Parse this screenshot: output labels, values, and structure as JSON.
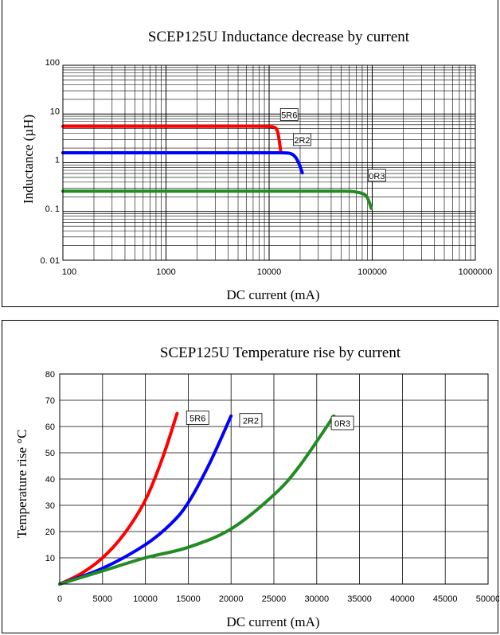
{
  "chart_data": [
    {
      "type": "line",
      "title": "SCEP125U Inductance decrease by current",
      "xlabel": "DC current (mA)",
      "ylabel": "Inductance (µH)",
      "xscale": "log",
      "yscale": "log",
      "xlim": [
        100,
        1000000
      ],
      "ylim": [
        0.01,
        100
      ],
      "x_tick_labels": [
        "100",
        "1000",
        "10000",
        "100000",
        "1000000"
      ],
      "y_tick_labels": [
        "0. 01",
        "0. 1",
        "1",
        "10",
        "100"
      ],
      "grid": true,
      "series": [
        {
          "name": "5R6",
          "color": "#ff0000",
          "x": [
            100,
            3000,
            8000,
            11000,
            12000,
            12500,
            13000
          ],
          "y": [
            5.6,
            5.6,
            5.6,
            5.4,
            4.5,
            3.0,
            1.6
          ]
        },
        {
          "name": "2R2",
          "color": "#0000ff",
          "x": [
            100,
            5000,
            12000,
            16000,
            18000,
            19500,
            21000
          ],
          "y": [
            1.6,
            1.6,
            1.6,
            1.55,
            1.3,
            0.95,
            0.62
          ]
        },
        {
          "name": "0R3",
          "color": "#228b22",
          "x": [
            100,
            10000,
            50000,
            70000,
            85000,
            92000,
            98000
          ],
          "y": [
            0.26,
            0.26,
            0.26,
            0.25,
            0.22,
            0.17,
            0.115
          ]
        }
      ]
    },
    {
      "type": "line",
      "title": "SCEP125U Temperature rise by current",
      "xlabel": "DC current (mA)",
      "ylabel": "Temperature rise °C",
      "xlim": [
        0,
        50000
      ],
      "ylim": [
        0,
        80
      ],
      "x_tick_labels": [
        "0",
        "5000",
        "10000",
        "15000",
        "20000",
        "25000",
        "30000",
        "35000",
        "40000",
        "45000",
        "50000"
      ],
      "y_tick_labels": [
        "10",
        "20",
        "30",
        "40",
        "50",
        "60",
        "70",
        "80"
      ],
      "grid": true,
      "series": [
        {
          "name": "5R6",
          "color": "#ff0000",
          "x": [
            0,
            2500,
            5000,
            7500,
            10000,
            12000,
            13700
          ],
          "y": [
            0,
            4,
            10,
            19,
            32,
            48,
            65
          ]
        },
        {
          "name": "2R2",
          "color": "#0000ff",
          "x": [
            0,
            5000,
            10000,
            13000,
            15000,
            17500,
            20000
          ],
          "y": [
            0,
            6,
            15,
            23,
            31,
            46,
            64
          ]
        },
        {
          "name": "0R3",
          "color": "#228b22",
          "x": [
            0,
            5000,
            10000,
            15000,
            20000,
            25000,
            28000,
            32000
          ],
          "y": [
            0,
            5,
            10,
            14,
            21,
            34,
            45,
            64
          ]
        }
      ]
    }
  ]
}
